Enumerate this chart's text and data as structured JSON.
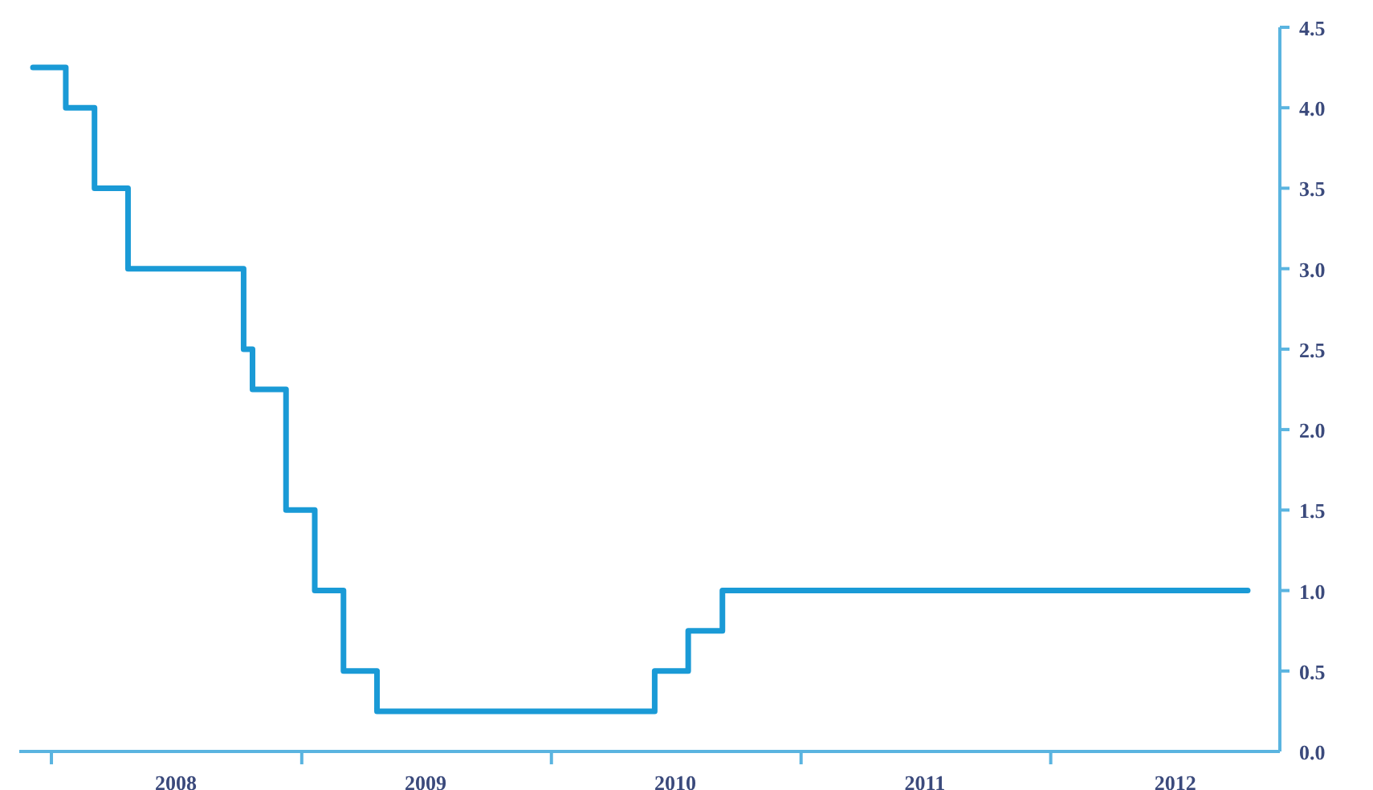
{
  "chart_data": {
    "type": "step",
    "x": [
      "2007-12-05",
      "2008-01-22",
      "2008-03-04",
      "2008-04-22",
      "2008-10-08",
      "2008-10-21",
      "2008-12-09",
      "2009-01-20",
      "2009-03-03",
      "2009-04-21",
      "2010-06-01",
      "2010-07-20",
      "2010-09-08",
      "2012-10-15"
    ],
    "series": [
      {
        "color": "#1a9ad6",
        "values": [
          4.25,
          4.0,
          3.5,
          3.0,
          2.5,
          2.25,
          1.5,
          1.0,
          0.5,
          0.25,
          0.5,
          0.75,
          1.0,
          1.0
        ]
      }
    ],
    "xlim": [
      "2007-11-15",
      "2012-12-01"
    ],
    "xticks": [
      {
        "value": "2008-01-01",
        "label": null
      },
      {
        "value": "2008-07-01",
        "label": "2008"
      },
      {
        "value": "2009-01-01",
        "label": null
      },
      {
        "value": "2009-07-01",
        "label": "2009"
      },
      {
        "value": "2010-01-01",
        "label": null
      },
      {
        "value": "2010-07-01",
        "label": "2010"
      },
      {
        "value": "2011-01-01",
        "label": null
      },
      {
        "value": "2011-07-01",
        "label": "2011"
      },
      {
        "value": "2012-01-01",
        "label": null
      },
      {
        "value": "2012-07-01",
        "label": "2012"
      }
    ],
    "ylim": [
      0,
      4.5
    ],
    "yticks": [
      {
        "value": 0,
        "label": "0.0"
      },
      {
        "value": 0.5,
        "label": "0.5"
      },
      {
        "value": 1,
        "label": "1.0"
      },
      {
        "value": 1.5,
        "label": "1.5"
      },
      {
        "value": 2,
        "label": "2.0"
      },
      {
        "value": 2.5,
        "label": "2.5"
      },
      {
        "value": 3,
        "label": "3.0"
      },
      {
        "value": 3.5,
        "label": "3.5"
      },
      {
        "value": 4,
        "label": "4.0"
      },
      {
        "value": 4.5,
        "label": "4.5"
      }
    ]
  }
}
